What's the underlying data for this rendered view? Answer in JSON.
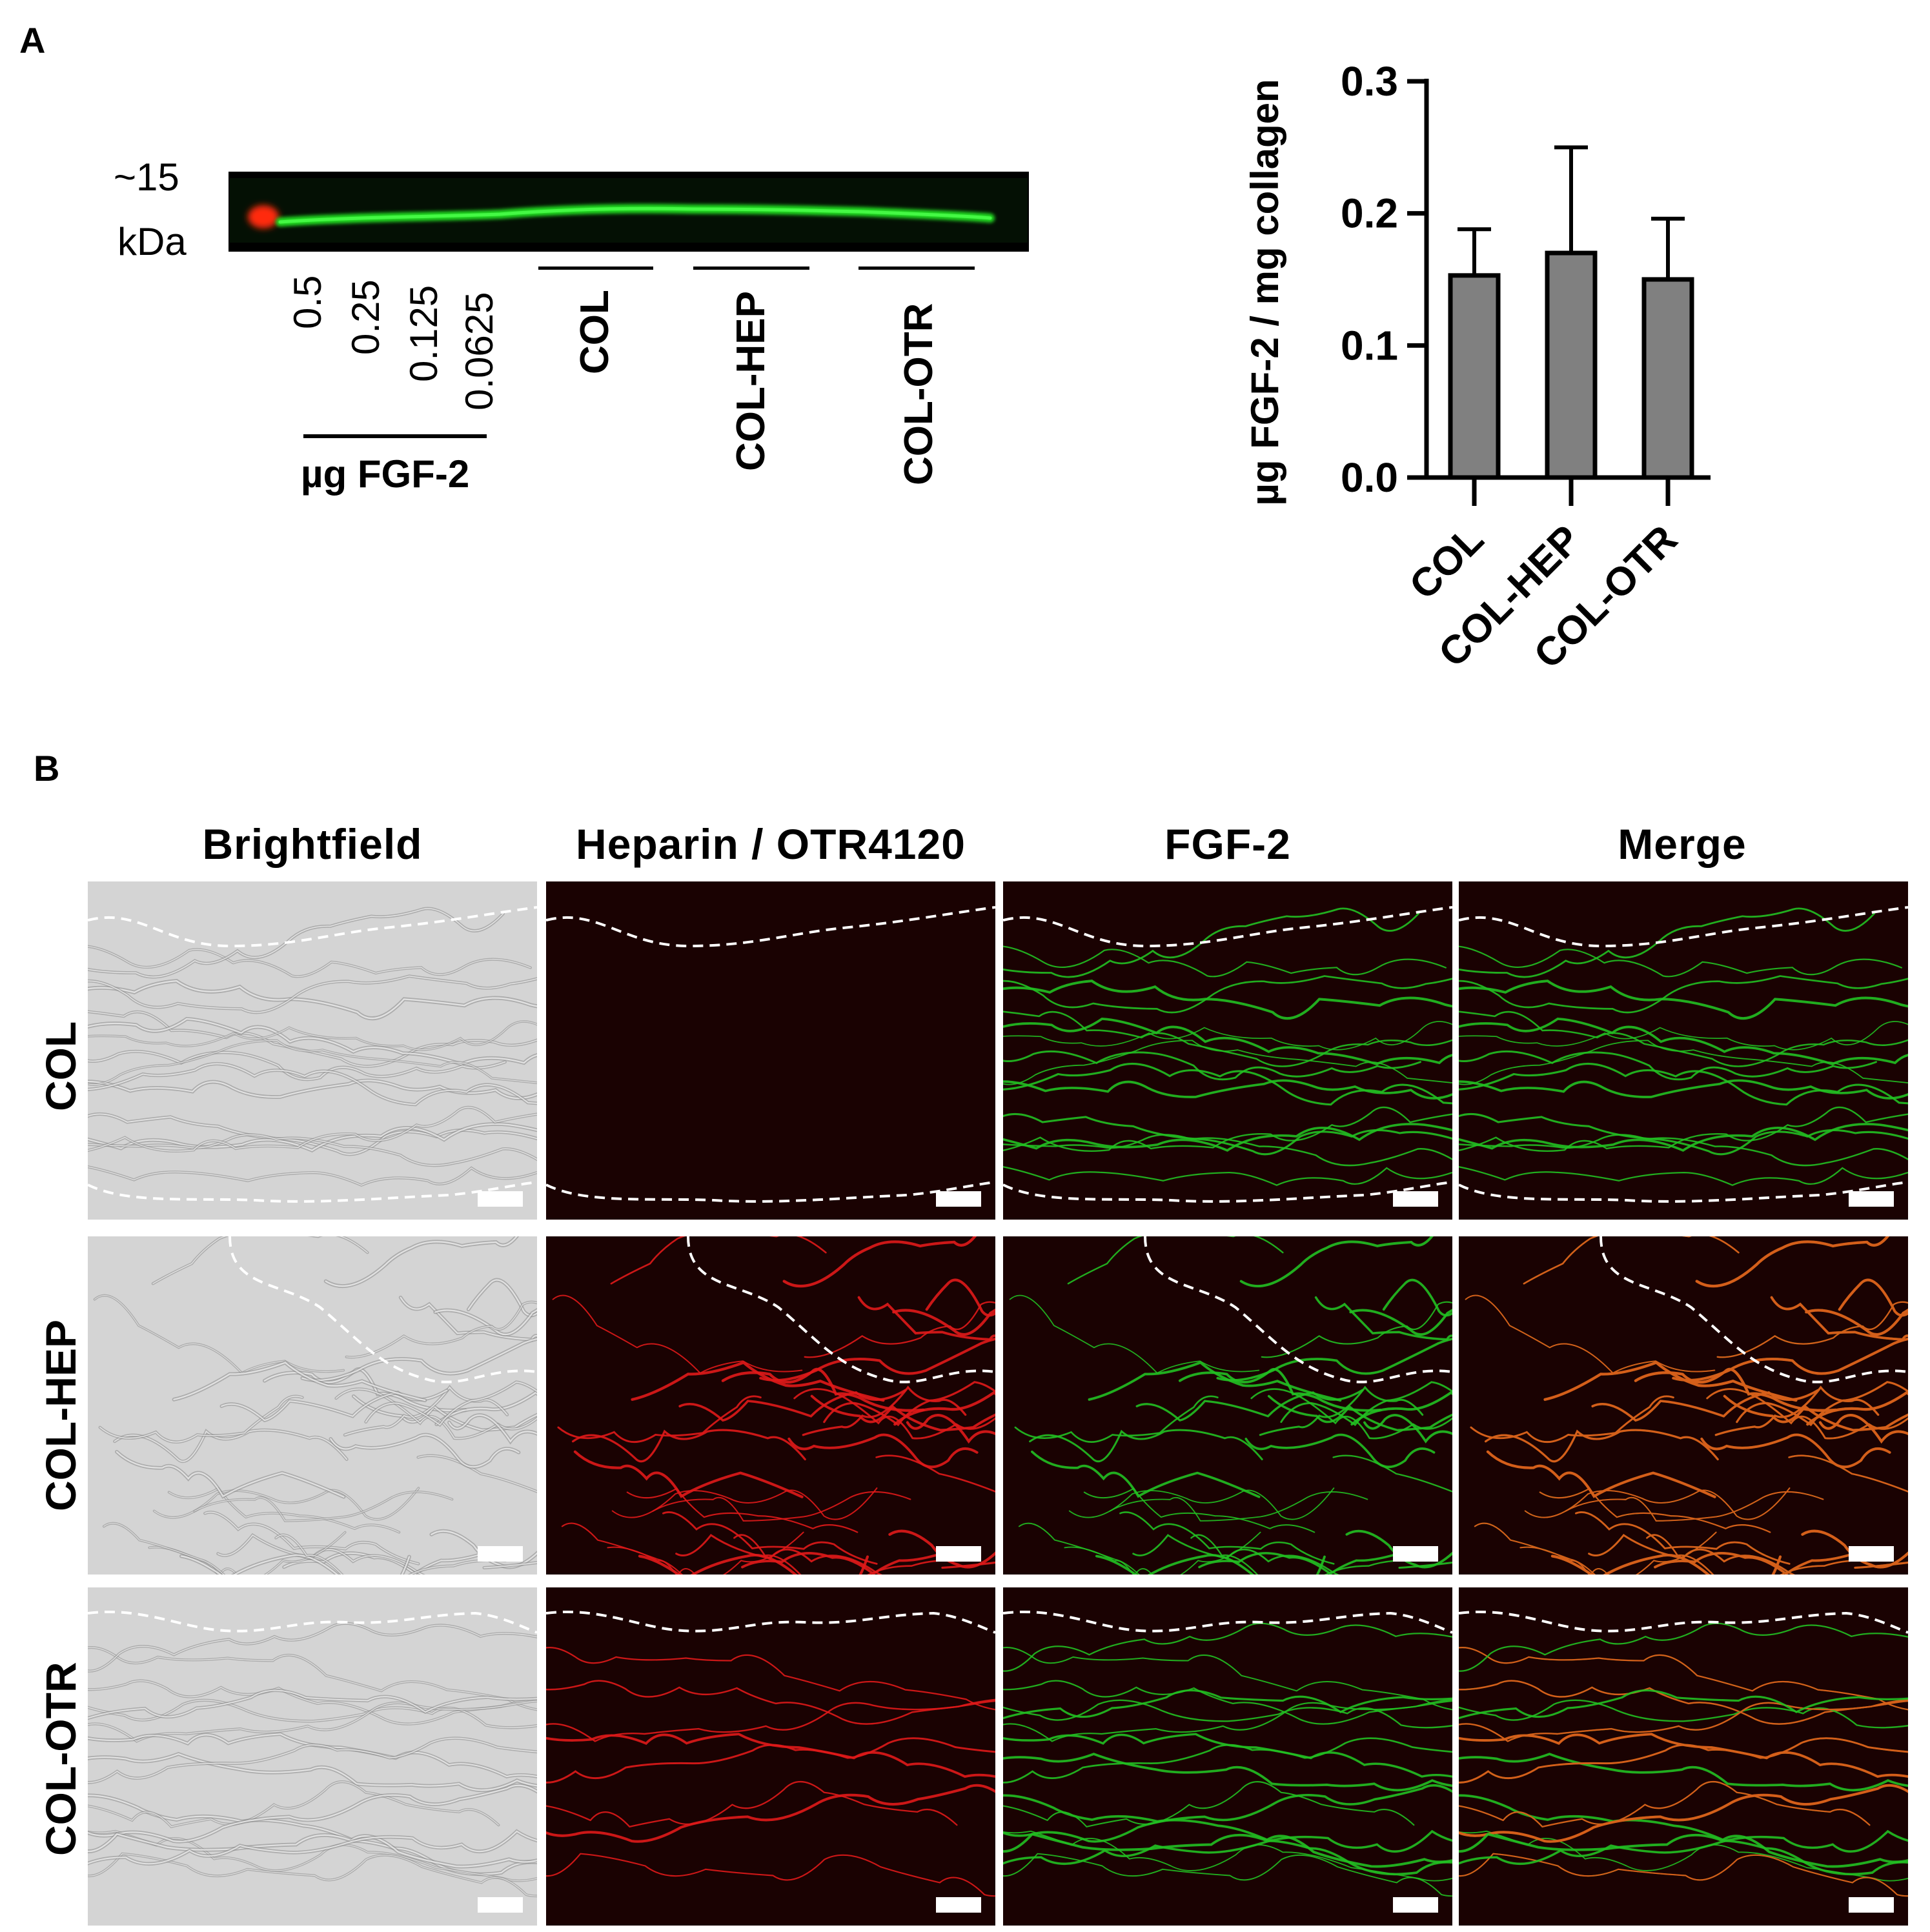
{
  "panel_a": {
    "letter": "A",
    "gel": {
      "marker_top": "~15",
      "marker_bottom": "kDa",
      "standards": [
        "0.5",
        "0.25",
        "0.125",
        "0.0625"
      ],
      "standards_label": "µg FGF-2",
      "groups": [
        "COL",
        "COL-HEP",
        "COL-OTR"
      ]
    }
  },
  "chart_data": {
    "type": "bar",
    "categories": [
      "COL",
      "COL-HEP",
      "COL-OTR"
    ],
    "values": [
      0.153,
      0.17,
      0.15
    ],
    "errors": [
      0.035,
      0.08,
      0.046
    ],
    "ylabel": "µg FGF-2 / mg collagen",
    "xlabel": "",
    "ylim": [
      0,
      0.3
    ],
    "yticks": [
      "0.0",
      "0.1",
      "0.2",
      "0.3"
    ],
    "bar_color": "#808080",
    "grid": false
  },
  "panel_b": {
    "letter": "B",
    "columns": [
      "Brightfield",
      "Heparin / OTR4120",
      "FGF-2",
      "Merge"
    ],
    "rows": [
      "COL",
      "COL-HEP",
      "COL-OTR"
    ]
  },
  "colors": {
    "gel_band": "#22e022",
    "marker": "#ff2a10",
    "red_channel": "#e01a1a",
    "green_channel": "#22c022",
    "fluor_bg": "#1a0202",
    "brightfield_bg": "#d4d4d4"
  }
}
